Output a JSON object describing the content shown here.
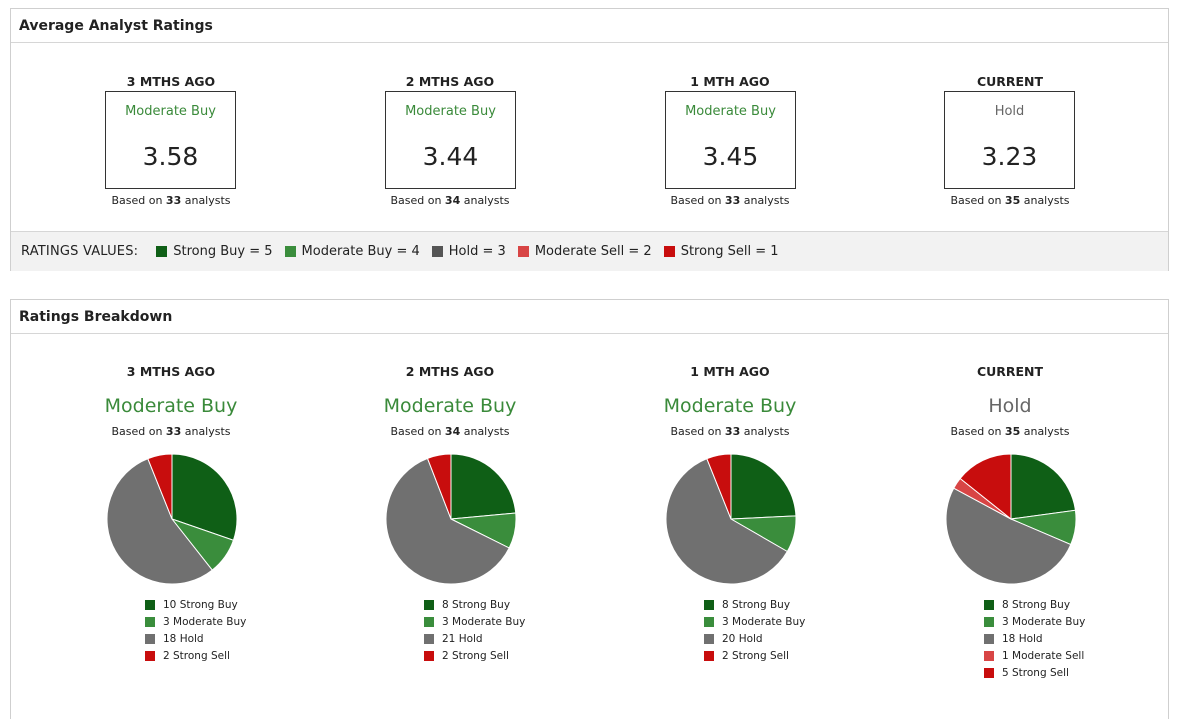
{
  "colors": {
    "strong_buy": "#0f5f16",
    "moderate_buy": "#3a8d3c",
    "hold": "#707070",
    "moderate_sell": "#d84545",
    "strong_sell": "#c80d0d",
    "buy_text": "#3a8a3a",
    "hold_text": "#666666"
  },
  "average": {
    "title": "Average Analyst Ratings",
    "columns": [
      {
        "period": "3 MTHS AGO",
        "rating": "Moderate Buy",
        "value": "3.58",
        "based_prefix": "Based on ",
        "count": "33",
        "based_suffix": " analysts",
        "tone": "buy"
      },
      {
        "period": "2 MTHS AGO",
        "rating": "Moderate Buy",
        "value": "3.44",
        "based_prefix": "Based on ",
        "count": "34",
        "based_suffix": " analysts",
        "tone": "buy"
      },
      {
        "period": "1 MTH AGO",
        "rating": "Moderate Buy",
        "value": "3.45",
        "based_prefix": "Based on ",
        "count": "33",
        "based_suffix": " analysts",
        "tone": "buy"
      },
      {
        "period": "CURRENT",
        "rating": "Hold",
        "value": "3.23",
        "based_prefix": "Based on ",
        "count": "35",
        "based_suffix": " analysts",
        "tone": "hold"
      }
    ],
    "ratings_values": {
      "title": "RATINGS VALUES:",
      "items": [
        {
          "label": "Strong Buy = 5",
          "color": "#0f5f16"
        },
        {
          "label": "Moderate Buy = 4",
          "color": "#3a8d3c"
        },
        {
          "label": "Hold = 3",
          "color": "#555555"
        },
        {
          "label": "Moderate Sell = 2",
          "color": "#d84545"
        },
        {
          "label": "Strong Sell = 1",
          "color": "#c80d0d"
        }
      ]
    }
  },
  "breakdown": {
    "title": "Ratings Breakdown",
    "columns": [
      {
        "period": "3 MTHS AGO",
        "rating": "Moderate Buy",
        "based_prefix": "Based on ",
        "count": "33",
        "based_suffix": " analysts",
        "tone": "buy",
        "legend": [
          "10 Strong Buy",
          "3 Moderate Buy",
          "18 Hold",
          "2 Strong Sell"
        ],
        "legend_colors": [
          "#0f5f16",
          "#3a8d3c",
          "#707070",
          "#c80d0d"
        ]
      },
      {
        "period": "2 MTHS AGO",
        "rating": "Moderate Buy",
        "based_prefix": "Based on ",
        "count": "34",
        "based_suffix": " analysts",
        "tone": "buy",
        "legend": [
          "8 Strong Buy",
          "3 Moderate Buy",
          "21 Hold",
          "2 Strong Sell"
        ],
        "legend_colors": [
          "#0f5f16",
          "#3a8d3c",
          "#707070",
          "#c80d0d"
        ]
      },
      {
        "period": "1 MTH AGO",
        "rating": "Moderate Buy",
        "based_prefix": "Based on ",
        "count": "33",
        "based_suffix": " analysts",
        "tone": "buy",
        "legend": [
          "8 Strong Buy",
          "3 Moderate Buy",
          "20 Hold",
          "2 Strong Sell"
        ],
        "legend_colors": [
          "#0f5f16",
          "#3a8d3c",
          "#707070",
          "#c80d0d"
        ]
      },
      {
        "period": "CURRENT",
        "rating": "Hold",
        "based_prefix": "Based on ",
        "count": "35",
        "based_suffix": " analysts",
        "tone": "hold",
        "legend": [
          "8 Strong Buy",
          "3 Moderate Buy",
          "18 Hold",
          "1 Moderate Sell",
          "5 Strong Sell"
        ],
        "legend_colors": [
          "#0f5f16",
          "#3a8d3c",
          "#707070",
          "#d84545",
          "#c80d0d"
        ]
      }
    ]
  },
  "chart_data": [
    {
      "type": "pie",
      "title": "3 MTHS AGO",
      "categories": [
        "Strong Buy",
        "Moderate Buy",
        "Hold",
        "Strong Sell"
      ],
      "values": [
        10,
        3,
        18,
        2
      ]
    },
    {
      "type": "pie",
      "title": "2 MTHS AGO",
      "categories": [
        "Strong Buy",
        "Moderate Buy",
        "Hold",
        "Strong Sell"
      ],
      "values": [
        8,
        3,
        21,
        2
      ]
    },
    {
      "type": "pie",
      "title": "1 MTH AGO",
      "categories": [
        "Strong Buy",
        "Moderate Buy",
        "Hold",
        "Strong Sell"
      ],
      "values": [
        8,
        3,
        20,
        2
      ]
    },
    {
      "type": "pie",
      "title": "CURRENT",
      "categories": [
        "Strong Buy",
        "Moderate Buy",
        "Hold",
        "Moderate Sell",
        "Strong Sell"
      ],
      "values": [
        8,
        3,
        18,
        1,
        5
      ]
    }
  ]
}
